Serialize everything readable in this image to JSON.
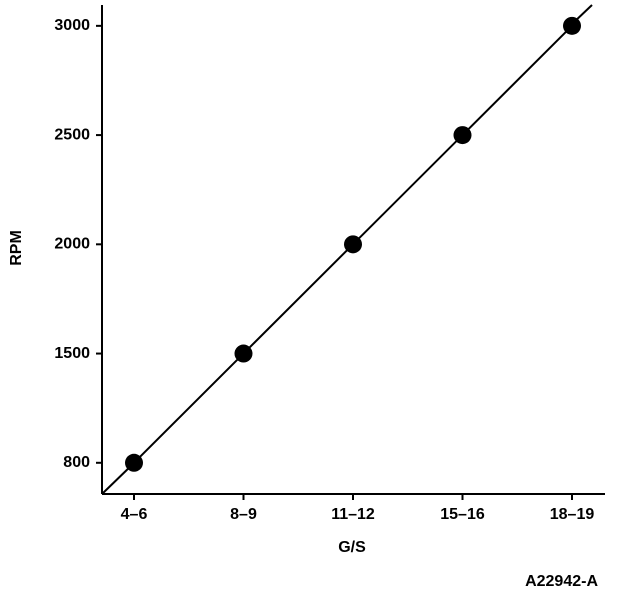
{
  "chart_data": {
    "type": "line",
    "x_label": "G/S",
    "y_label": "RPM",
    "annotation": "A22942-A",
    "categories": [
      "4–6",
      "8–9",
      "11–12",
      "15–16",
      "18–19"
    ],
    "values": [
      800,
      1500,
      2000,
      2500,
      3000
    ],
    "color": "#000000",
    "ylim": [
      600,
      3100
    ],
    "yticks": [
      800,
      1500,
      2000,
      2500,
      3000
    ],
    "grid": false,
    "markers": true
  }
}
